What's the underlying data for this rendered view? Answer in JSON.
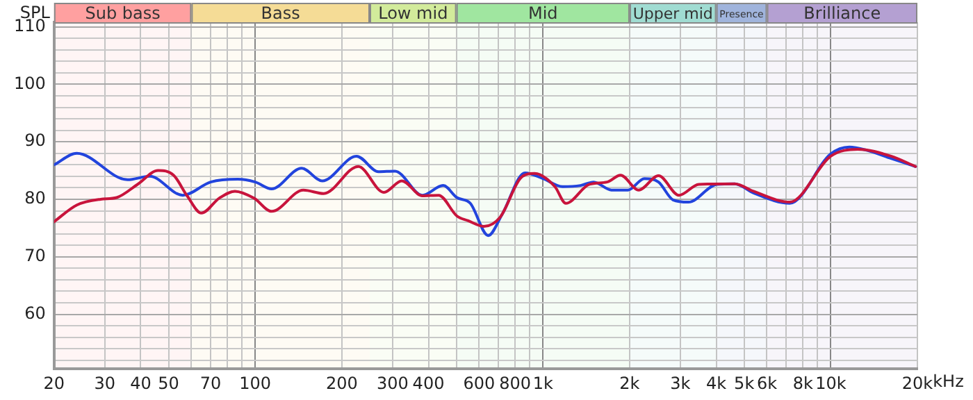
{
  "chart_data": {
    "type": "line",
    "ylabel": "SPL",
    "xlim": [
      20,
      20000
    ],
    "ylim": [
      50.5,
      110.8
    ],
    "xticks": [
      20,
      30,
      40,
      50,
      {
        "value": 60,
        "label": null
      },
      70,
      {
        "value": 80,
        "label": null
      },
      {
        "value": 90,
        "label": null
      },
      100,
      200,
      300,
      400,
      {
        "value": 500,
        "label": null
      },
      600,
      {
        "value": 700,
        "label": null
      },
      800,
      {
        "value": 900,
        "label": null
      },
      {
        "value": 1000,
        "label": "1k"
      },
      {
        "value": 2000,
        "label": "2k"
      },
      {
        "value": 3000,
        "label": "3k"
      },
      {
        "value": 4000,
        "label": "4k"
      },
      {
        "value": 5000,
        "label": "5k"
      },
      {
        "value": 6000,
        "label": "6k"
      },
      {
        "value": 7000,
        "label": null
      },
      {
        "value": 8000,
        "label": "8k"
      },
      {
        "value": 9000,
        "label": null
      },
      {
        "value": 10000,
        "label": "10k"
      },
      {
        "value": 20000,
        "label": "20k"
      }
    ],
    "xlabel": "kHz",
    "log": "x",
    "yticks": [
      {
        "value": 52,
        "label": null
      },
      {
        "value": 54,
        "label": null
      },
      {
        "value": 56,
        "label": null
      },
      {
        "value": 58,
        "label": null
      },
      60,
      {
        "value": 62,
        "label": null
      },
      {
        "value": 64,
        "label": null
      },
      {
        "value": 66,
        "label": null
      },
      {
        "value": 68,
        "label": null
      },
      70,
      {
        "value": 72,
        "label": null
      },
      {
        "value": 74,
        "label": null
      },
      {
        "value": 76,
        "label": null
      },
      {
        "value": 78,
        "label": null
      },
      80,
      {
        "value": 82,
        "label": null
      },
      {
        "value": 84,
        "label": null
      },
      {
        "value": 86,
        "label": null
      },
      {
        "value": 88,
        "label": null
      },
      90,
      {
        "value": 92,
        "label": null
      },
      {
        "value": 94,
        "label": null
      },
      {
        "value": 96,
        "label": null
      },
      {
        "value": 98,
        "label": null
      },
      100,
      {
        "value": 102,
        "label": null
      },
      {
        "value": 104,
        "label": null
      },
      {
        "value": 106,
        "label": null
      },
      {
        "value": 108,
        "label": null
      },
      110
    ],
    "grid": true,
    "legend": false,
    "marker": "none",
    "line_style": "solid",
    "bands": [
      {
        "axis": "x",
        "from": 20,
        "to": 60,
        "label": "Sub bass",
        "color": "#ffa0a0"
      },
      {
        "axis": "x",
        "from": 60,
        "to": 250,
        "label": "Bass",
        "color": "#f5dc96"
      },
      {
        "axis": "x",
        "from": 250,
        "to": 500,
        "label": "Low mid",
        "color": "#d2eb9b"
      },
      {
        "axis": "x",
        "from": 500,
        "to": 2000,
        "label": "Mid",
        "color": "#a0e6a0"
      },
      {
        "axis": "x",
        "from": 2000,
        "to": 4000,
        "label": "Upper mid",
        "color": "#a0dcd2"
      },
      {
        "axis": "x",
        "from": 4000,
        "to": 6000,
        "label": "Presence",
        "color": "#a0b4dc"
      },
      {
        "axis": "x",
        "from": 6000,
        "to": 20000,
        "label": "Brilliance",
        "color": "#b4a0d2"
      }
    ],
    "series": [
      {
        "color": "#c8143c",
        "x": [
          20,
          24,
          29,
          33,
          39,
          46,
          52,
          58,
          65,
          75,
          85,
          99,
          114,
          147,
          173,
          228,
          280,
          323,
          381,
          434,
          502,
          548,
          623,
          710,
          840,
          935,
          1100,
          1200,
          1450,
          1670,
          1860,
          2150,
          2520,
          2970,
          3480,
          4640,
          5390,
          7200,
          10000,
          12400,
          16200,
          19700
        ],
        "values": [
          76.1,
          79,
          80,
          80.3,
          82.6,
          85,
          84.2,
          80.6,
          77.6,
          80.2,
          81.4,
          80.2,
          77.9,
          81.6,
          81,
          85.7,
          81.2,
          83.2,
          80.6,
          80.7,
          77.1,
          76.3,
          75.3,
          76.9,
          83.8,
          84.5,
          82.2,
          79.3,
          82.6,
          83,
          84.2,
          81.6,
          84.1,
          80.7,
          82.6,
          82.7,
          81.4,
          79.5,
          87.5,
          88.7,
          87.5,
          85.7
        ]
      },
      {
        "color": "#2244dd",
        "x": [
          20,
          24,
          36,
          43,
          56,
          70,
          87,
          100,
          114,
          145,
          171,
          225,
          268,
          306,
          381,
          450,
          502,
          559,
          645,
          720,
          866,
          1000,
          1170,
          1350,
          1500,
          1730,
          1975,
          2250,
          2520,
          2830,
          3200,
          4020,
          4640,
          5390,
          7200,
          10000,
          11600,
          13400,
          16200,
          19700
        ],
        "values": [
          86,
          88,
          83.4,
          84,
          80.7,
          83,
          83.5,
          83,
          81.8,
          85.4,
          83.2,
          87.5,
          84.8,
          84.9,
          80.7,
          82.4,
          80.3,
          79.3,
          73.7,
          77.3,
          84.6,
          83.6,
          82.2,
          82.4,
          83,
          81.6,
          81.6,
          83.6,
          83,
          79.9,
          79.5,
          82.6,
          82.7,
          81.1,
          79.3,
          87.9,
          89.1,
          88.5,
          87.1,
          85.7
        ]
      }
    ]
  }
}
